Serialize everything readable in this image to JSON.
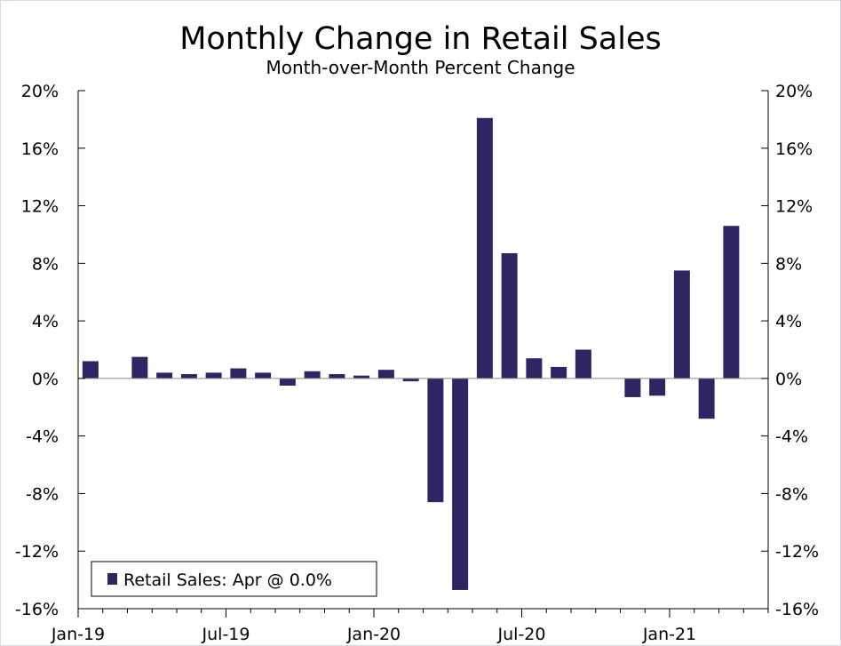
{
  "chart_data": {
    "type": "bar",
    "title": "Monthly Change in Retail Sales",
    "subtitle": "Month-over-Month Percent Change",
    "xlabel": "",
    "ylabel": "",
    "ylim": [
      -16,
      20
    ],
    "y_ticks": [
      20,
      16,
      12,
      8,
      4,
      0,
      -4,
      -8,
      -12,
      -16
    ],
    "y_tick_labels": [
      "20%",
      "16%",
      "12%",
      "8%",
      "4%",
      "0%",
      "-4%",
      "-8%",
      "-12%",
      "-16%"
    ],
    "x_tick_labels": [
      "Jan-19",
      "Jul-19",
      "Jan-20",
      "Jul-20",
      "Jan-21"
    ],
    "x_tick_index": [
      0,
      6,
      12,
      18,
      24
    ],
    "categories": [
      "Jan-19",
      "Feb-19",
      "Mar-19",
      "Apr-19",
      "May-19",
      "Jun-19",
      "Jul-19",
      "Aug-19",
      "Sep-19",
      "Oct-19",
      "Nov-19",
      "Dec-19",
      "Jan-20",
      "Feb-20",
      "Mar-20",
      "Apr-20",
      "May-20",
      "Jun-20",
      "Jul-20",
      "Aug-20",
      "Sep-20",
      "Oct-20",
      "Nov-20",
      "Dec-20",
      "Jan-21",
      "Feb-21",
      "Mar-21",
      "Apr-21"
    ],
    "series": [
      {
        "name": "Retail Sales: Apr @ 0.0%",
        "color": "#2e2663",
        "values": [
          1.2,
          0.0,
          1.5,
          0.4,
          0.3,
          0.4,
          0.7,
          0.4,
          -0.5,
          0.5,
          0.3,
          0.2,
          0.6,
          -0.2,
          -8.6,
          -14.7,
          18.1,
          8.7,
          1.4,
          0.8,
          2.0,
          0.0,
          -1.3,
          -1.2,
          7.5,
          -2.8,
          10.6,
          0.0
        ]
      }
    ],
    "grid": false,
    "legend_position": "bottom-left",
    "axis_color": "#000000",
    "zero_line_color": "#888888"
  }
}
